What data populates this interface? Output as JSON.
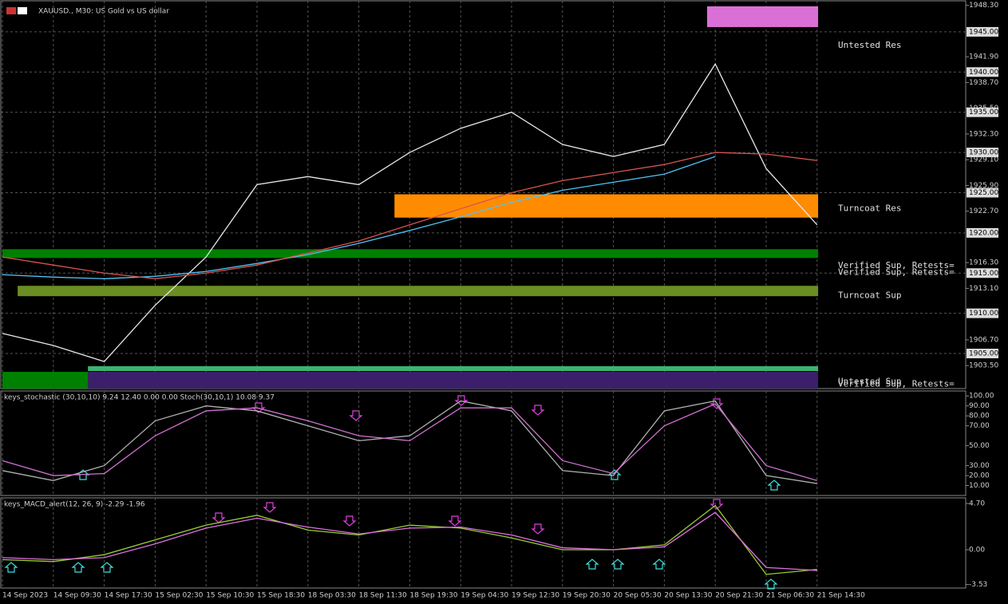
{
  "header": {
    "title": "XAUUSD., M30:  US Gold vs US dollar"
  },
  "chart_data": [
    {
      "type": "line",
      "categories": [
        "14 Sep 2023",
        "14 Sep 09:30",
        "14 Sep 17:30",
        "15 Sep 02:30",
        "15 Sep 10:30",
        "15 Sep 18:30",
        "18 Sep 03:30",
        "18 Sep 11:30",
        "18 Sep 19:30",
        "19 Sep 04:30",
        "19 Sep 12:30",
        "19 Sep 20:30",
        "20 Sep 05:30",
        "20 Sep 13:30",
        "20 Sep 21:30",
        "21 Sep 06:30",
        "21 Sep 14:30"
      ],
      "series": [
        {
          "color": "#e8e8e8",
          "values": [
            1907.5,
            1906,
            1904,
            1911,
            1917,
            1926,
            1927,
            1926,
            1930,
            1933,
            1935,
            1931,
            1929.5,
            1931,
            1941,
            1928,
            1921
          ]
        },
        {
          "color": "#4fc3f7",
          "values": [
            1914.8,
            1914.5,
            1914.3,
            1914.6,
            1915.2,
            1916.2,
            1917.3,
            1918.7,
            1920.3,
            1922,
            1923.8,
            1925.3,
            1926.3,
            1927.3,
            1929.5,
            null,
            null
          ]
        },
        {
          "color": "#d9534f",
          "values": [
            1917,
            1916,
            1915,
            1914.3,
            1915,
            1916,
            1917.5,
            1919,
            1921,
            1923,
            1925,
            1926.5,
            1927.5,
            1928.5,
            1930,
            1929.8,
            1929
          ]
        }
      ],
      "ylim": [
        1900.64,
        1948.86
      ],
      "yticks": [
        {
          "value": 1948.3,
          "label": "1948.30"
        },
        {
          "value": 1945,
          "label": "1945.00"
        },
        {
          "value": 1941.9,
          "label": "1941.90"
        },
        {
          "value": 1940,
          "label": "1940.00"
        },
        {
          "value": 1938.7,
          "label": "1938.70"
        },
        {
          "value": 1935.5,
          "label": "1935.50"
        },
        {
          "value": 1935,
          "label": "1935.00"
        },
        {
          "value": 1932.3,
          "label": "1932.30"
        },
        {
          "value": 1930,
          "label": "1930.00"
        },
        {
          "value": 1929.1,
          "label": "1929.10"
        },
        {
          "value": 1925.9,
          "label": "1925.90"
        },
        {
          "value": 1925,
          "label": "1925.00"
        },
        {
          "value": 1922.7,
          "label": "1922.70"
        },
        {
          "value": 1920,
          "label": "1920.00"
        },
        {
          "value": 1916.3,
          "label": "1916.30"
        },
        {
          "value": 1915,
          "label": "1915.00"
        },
        {
          "value": 1913.1,
          "label": "1913.10"
        },
        {
          "value": 1910,
          "label": "1910.00"
        },
        {
          "value": 1906.7,
          "label": "1906.70"
        },
        {
          "value": 1905,
          "label": "1905.00"
        },
        {
          "value": 1903.5,
          "label": "1903.50"
        }
      ],
      "zones": [
        {
          "x": [
            13.84,
            16.02
          ],
          "low": 1945.59,
          "high": 1948.17,
          "color": "#da70d6"
        },
        {
          "x": [
            7.7,
            16.02
          ],
          "low": 1921.9,
          "high": 1924.8,
          "color": "#ff8c00"
        },
        {
          "x": [
            0,
            16.02
          ],
          "low": 1916.88,
          "high": 1917.97,
          "color": "#008000"
        },
        {
          "x": [
            0.3,
            16.02
          ],
          "low": 1912.13,
          "high": 1913.42,
          "color": "#6b8e23"
        },
        {
          "x": [
            1.68,
            16.02
          ],
          "low": 1902.82,
          "high": 1903.42,
          "color": "#3cb371"
        },
        {
          "x": [
            1.68,
            16.02
          ],
          "low": 1900.64,
          "high": 1902.72,
          "color": "#3b1f6b"
        },
        {
          "x": [
            0,
            1.68
          ],
          "low": 1900.64,
          "high": 1902.72,
          "color": "#008000"
        }
      ],
      "labels": [
        {
          "text": "Untested Res",
          "value": 1943.3
        },
        {
          "text": "Turncoat Res",
          "value": 1923.0
        },
        {
          "text": "Verified Sup, Retests=",
          "value": 1915.9
        },
        {
          "text": "Verified Sup, Retests=",
          "value": 1915.1
        },
        {
          "text": "Turncoat Sup",
          "value": 1912.2
        },
        {
          "text": "Untested Sup",
          "value": 1901.5
        },
        {
          "text": "Verified Sup, Retests=",
          "value": 1901.2
        }
      ]
    },
    {
      "type": "line",
      "title": "keys_stochastic (30,10,10) 9.24 12.40 0.00 0.00 Stoch(30,10,1) 10.08 9.37",
      "series": [
        {
          "color": "#b0b0b0",
          "values": [
            25,
            15,
            30,
            75,
            90,
            85,
            70,
            55,
            60,
            95,
            85,
            25,
            20,
            85,
            95,
            20,
            12
          ]
        },
        {
          "color": "#d070d0",
          "values": [
            35,
            20,
            22,
            60,
            85,
            88,
            75,
            60,
            55,
            88,
            88,
            35,
            22,
            70,
            92,
            30,
            15
          ]
        }
      ],
      "ylim": [
        0,
        105
      ],
      "yticks": [
        {
          "value": 100,
          "label": "100.00"
        },
        {
          "value": 90,
          "label": "90.00"
        },
        {
          "value": 80,
          "label": "80.00"
        },
        {
          "value": 70,
          "label": "70.00"
        },
        {
          "value": 50,
          "label": "50.00"
        },
        {
          "value": 30,
          "label": "30.00"
        },
        {
          "value": 20,
          "label": "20.00"
        },
        {
          "value": 10,
          "label": "10.00"
        }
      ]
    },
    {
      "type": "line",
      "title": "keys_MACD_alert(12, 26, 9) -2.29 -1.96",
      "series": [
        {
          "color": "#9acd32",
          "values": [
            -1,
            -1.2,
            -0.5,
            1,
            2.5,
            3.5,
            2,
            1.5,
            2.5,
            2.2,
            1.2,
            0,
            0,
            0.5,
            4.5,
            -2.5,
            -2
          ]
        },
        {
          "color": "#e070e0",
          "values": [
            -0.8,
            -1,
            -0.8,
            0.6,
            2.2,
            3.2,
            2.3,
            1.6,
            2.2,
            2.3,
            1.5,
            0.2,
            0,
            0.3,
            3.8,
            -1.8,
            -2.1
          ]
        }
      ],
      "ylim": [
        -3.89,
        5.27
      ],
      "yticks": [
        {
          "value": 4.7,
          "label": "4.70"
        },
        {
          "value": 0,
          "label": "0.00"
        },
        {
          "value": -3.53,
          "label": "-3.53"
        }
      ]
    }
  ]
}
